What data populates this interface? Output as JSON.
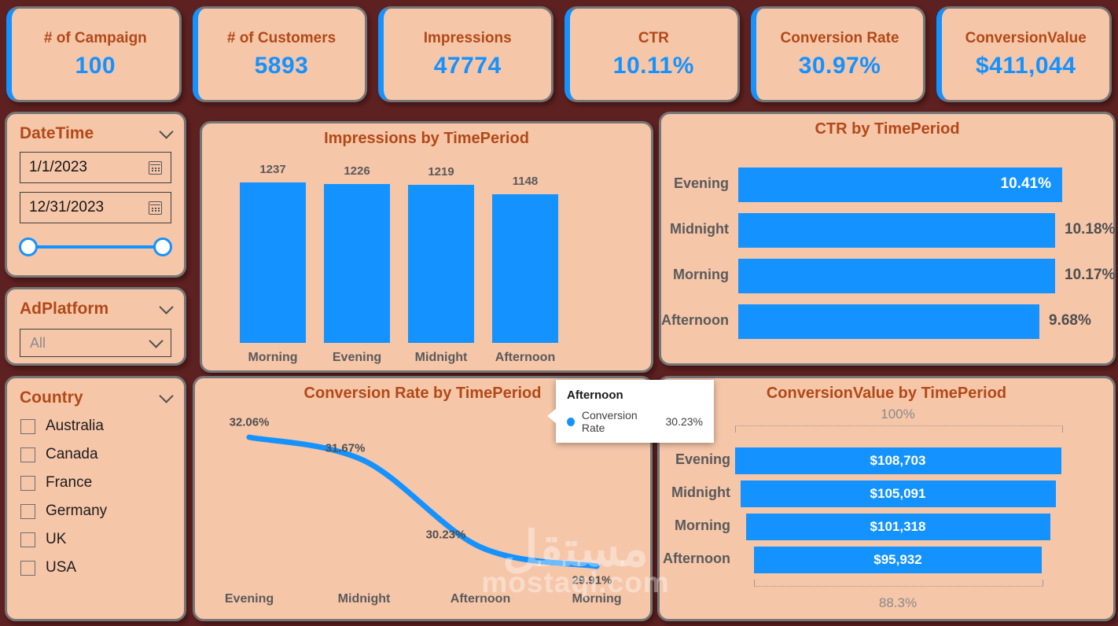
{
  "colors": {
    "background": "#5e2121",
    "panel_bg": "#f6c6a9",
    "accent_blue": "#1492ff",
    "title_rust": "#b24918",
    "border_gray": "#757575"
  },
  "kpis": [
    {
      "label": "# of Campaign",
      "value": "100"
    },
    {
      "label": "# of Customers",
      "value": "5893"
    },
    {
      "label": "Impressions",
      "value": "47774"
    },
    {
      "label": "CTR",
      "value": "10.11%"
    },
    {
      "label": "Conversion Rate",
      "value": "30.97%"
    },
    {
      "label": "ConversionValue",
      "value": "$411,044"
    }
  ],
  "slicers": {
    "datetime": {
      "title": "DateTime",
      "start_date": "1/1/2023",
      "end_date": "12/31/2023"
    },
    "adplatform": {
      "title": "AdPlatform",
      "selected": "All"
    },
    "country": {
      "title": "Country",
      "options": [
        "Australia",
        "Canada",
        "France",
        "Germany",
        "UK",
        "USA"
      ]
    }
  },
  "chart_data": [
    {
      "type": "bar",
      "title": "Impressions by TimePeriod",
      "categories": [
        "Morning",
        "Evening",
        "Midnight",
        "Afternoon"
      ],
      "values": [
        1237,
        1226,
        1219,
        1148
      ],
      "value_labels": [
        "1237",
        "1226",
        "1219",
        "1148"
      ],
      "ylim": [
        0,
        1237
      ],
      "grid": false,
      "data_labels": true
    },
    {
      "type": "bar",
      "orientation": "horizontal",
      "title": "CTR by TimePeriod",
      "categories": [
        "Evening",
        "Midnight",
        "Morning",
        "Afternoon"
      ],
      "values": [
        10.41,
        10.18,
        10.17,
        9.68
      ],
      "value_labels": [
        "10.41%",
        "10.18%",
        "10.17%",
        "9.68%"
      ],
      "xlim": [
        0,
        10.41
      ],
      "grid": false,
      "data_labels": true
    },
    {
      "type": "line",
      "title": "Conversion Rate by TimePeriod",
      "categories": [
        "Evening",
        "Midnight",
        "Afternoon",
        "Morning"
      ],
      "values": [
        32.06,
        31.67,
        30.23,
        29.91
      ],
      "value_labels": [
        "32.06%",
        "31.67%",
        "30.23%",
        "29.91%"
      ],
      "grid": false,
      "data_labels": true
    },
    {
      "type": "funnel",
      "title": "ConversionValue by TimePeriod",
      "categories": [
        "Evening",
        "Midnight",
        "Morning",
        "Afternoon"
      ],
      "values": [
        108703,
        105091,
        101318,
        95932
      ],
      "value_labels": [
        "$108,703",
        "$105,091",
        "$101,318",
        "$95,932"
      ],
      "top_label": "100%",
      "bottom_label": "88.3%"
    }
  ],
  "tooltip": {
    "title": "Afternoon",
    "series": "Conversion Rate",
    "value": "30.23%"
  },
  "watermark": {
    "line1": "مستقل",
    "line2": "mostaql.com"
  }
}
